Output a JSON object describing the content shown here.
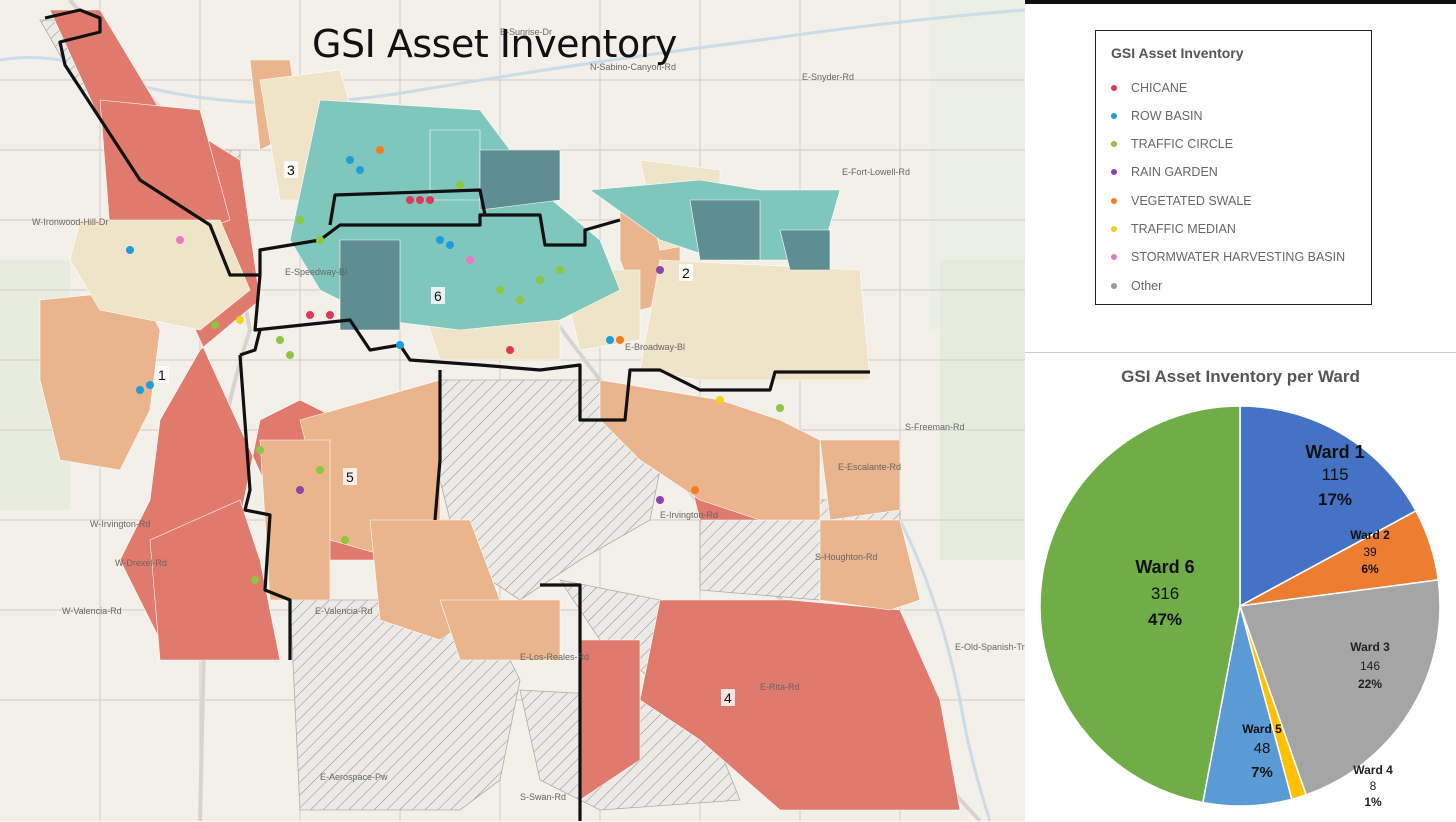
{
  "map": {
    "title": "GSI Asset Inventory",
    "ward_labels": [
      "1",
      "2",
      "3",
      "4",
      "5",
      "6"
    ],
    "street_labels": [
      "E-Snyder-Rd",
      "E-Fort-Lowell-Rd",
      "W-Ironwood-Hill-Dr",
      "E-Speedway-Bl",
      "E-Broadway-Bl",
      "W-Irvington-Rd",
      "E-Irvington-Rd",
      "W-Drexel-Rd",
      "W-Valencia-Rd",
      "E-Valencia-Rd",
      "E-Los-Reales-Rd",
      "E-Rita-Rd",
      "E-Aerospace-Pw",
      "E-Escalante-Rd",
      "E-Old-Spanish-Tr",
      "S-Freeman-Rd",
      "N-Sabino-Canyon-Rd",
      "E-Sunrise-Dr",
      "S-Houghton-Rd",
      "S-Swan-Rd"
    ]
  },
  "legend": {
    "title": "GSI Asset Inventory",
    "items": [
      {
        "label": "CHICANE",
        "color": "#e0375a"
      },
      {
        "label": "ROW BASIN",
        "color": "#1f9dd9"
      },
      {
        "label": "TRAFFIC CIRCLE",
        "color": "#8dc63f"
      },
      {
        "label": "RAIN GARDEN",
        "color": "#8e44ad"
      },
      {
        "label": "VEGETATED SWALE",
        "color": "#f47c20"
      },
      {
        "label": "TRAFFIC MEDIAN",
        "color": "#f2d21b"
      },
      {
        "label": "STORMWATER HARVESTING BASIN",
        "color": "#e87ac4"
      },
      {
        "label": "Other",
        "color": "#9a9a9a"
      }
    ]
  },
  "chart_data": {
    "type": "pie",
    "title": "GSI Asset Inventory per Ward",
    "slices": [
      {
        "name": "Ward 1",
        "value": 115,
        "percent": "17%",
        "color": "#4472c4"
      },
      {
        "name": "Ward 2",
        "value": 39,
        "percent": "6%",
        "color": "#ed7d31"
      },
      {
        "name": "Ward 3",
        "value": 146,
        "percent": "22%",
        "color": "#a5a5a5"
      },
      {
        "name": "Ward 4",
        "value": 8,
        "percent": "1%",
        "color": "#ffc000"
      },
      {
        "name": "Ward 5",
        "value": 48,
        "percent": "7%",
        "color": "#5b9bd5"
      },
      {
        "name": "Ward 6",
        "value": 316,
        "percent": "47%",
        "color": "#70ad47"
      }
    ]
  }
}
